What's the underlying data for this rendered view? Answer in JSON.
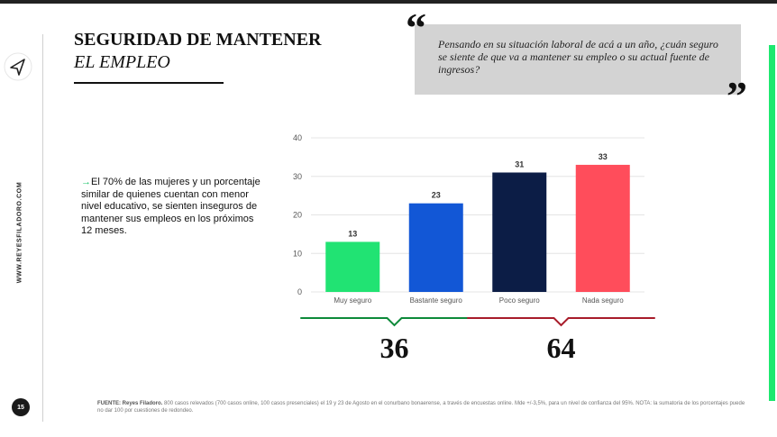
{
  "header": {
    "title_line1": "SEGURIDAD DE MANTENER",
    "title_line2": "EL EMPLEO"
  },
  "question": {
    "text": "Pensando en su situación laboral de acá a un año, ¿cuán seguro se siente de que va a mantener su empleo o su actual fuente de ingresos?",
    "open_mark": "“",
    "close_mark": "”"
  },
  "sidebar": {
    "website": "WWW.REYESFILADORO.COM",
    "page_number": "15",
    "nav_icon": "paper-plane-icon"
  },
  "insight": {
    "text": "El 70% de las mujeres y un porcentaje similar de quienes cuentan con menor nivel educativo, se sienten inseguros de mantener sus empleos en los próximos 12 meses."
  },
  "chart_data": {
    "type": "bar",
    "categories": [
      "Muy seguro",
      "Bastante seguro",
      "Poco seguro",
      "Nada seguro"
    ],
    "values": [
      13,
      23,
      31,
      33
    ],
    "colors": [
      "#21e373",
      "#1257d6",
      "#0c1d46",
      "#ff4d5b"
    ],
    "ylim": [
      0,
      40
    ],
    "yticks": [
      0,
      10,
      20,
      30,
      40
    ],
    "grid": true,
    "groups": [
      {
        "total": "36",
        "categories": [
          "Muy seguro",
          "Bastante seguro"
        ],
        "color": "#0d8a3a"
      },
      {
        "total": "64",
        "categories": [
          "Poco seguro",
          "Nada seguro"
        ],
        "color": "#a81c2a"
      }
    ]
  },
  "footnote": {
    "source_label": "FUENTE: Reyes Filadoro.",
    "text": " 800 casos relevados (700 casos online, 100 casos presenciales) el 19 y 23 de Agosto en el conurbano bonaerense, a través de encuestas online. Mde +/-3,5%, para un nivel de confianza del 95%. NOTA: la sumatoria de los porcentajes puede no dar 100 por cuestiones de redondeo."
  },
  "colors": {
    "accent_green": "#1ee86f",
    "quote_bg": "#d3d3d3"
  }
}
